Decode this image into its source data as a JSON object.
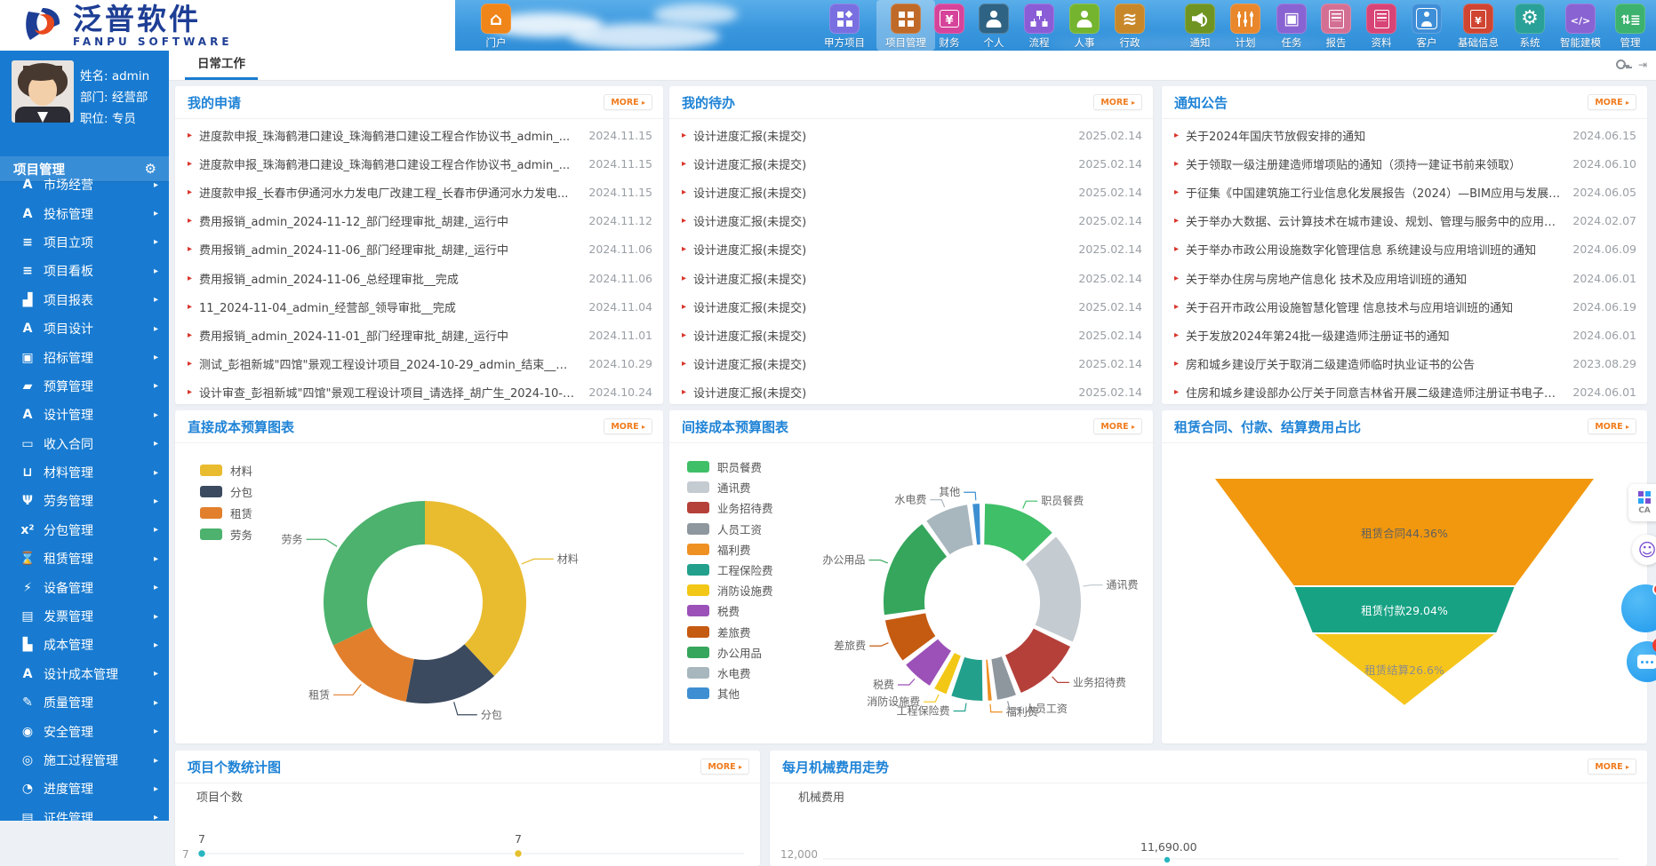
{
  "ui": {
    "more_label": "MORE",
    "accent_blue": "#1f83d6",
    "more_orange": "#f07c1e",
    "sidebar_blue": "#187bd1"
  },
  "header": {
    "logo": {
      "title": "泛普软件",
      "subtitle": "FANPU SOFTWARE"
    },
    "home": {
      "label": "门户",
      "icon": "home-icon",
      "color": "#f08519"
    },
    "nav": [
      {
        "label": "甲方项目",
        "icon": "grid-diamond-icon",
        "color": "#7a6fe0"
      },
      {
        "label": "项目管理",
        "icon": "grid-icon",
        "color": "#bf6a28",
        "active": true
      },
      {
        "label": "财务",
        "icon": "yen-box-icon",
        "color": "#d6439a"
      },
      {
        "label": "个人",
        "icon": "person-icon",
        "color": "#2f6383"
      },
      {
        "label": "流程",
        "icon": "orgchart-icon",
        "color": "#8a5dd6"
      },
      {
        "label": "人事",
        "icon": "person-icon",
        "color": "#74b42e"
      },
      {
        "label": "行政",
        "icon": "layers-icon",
        "color": "#c8882a"
      },
      {
        "label": "通知",
        "icon": "speaker-icon",
        "color": "#6f9422"
      },
      {
        "label": "计划",
        "icon": "sliders-icon",
        "color": "#e8872b"
      },
      {
        "label": "任务",
        "icon": "task-box-icon",
        "color": "#8a63d2"
      },
      {
        "label": "报告",
        "icon": "report-doc-icon",
        "color": "#d46f94"
      },
      {
        "label": "资料",
        "icon": "doc-icon",
        "color": "#d84476"
      },
      {
        "label": "客户",
        "icon": "person-box-icon",
        "color": "#3f8fd8"
      },
      {
        "label": "基础信息",
        "icon": "yen-doc-icon",
        "color": "#cf4532"
      },
      {
        "label": "系统",
        "icon": "gear-icon",
        "color": "#2aa198"
      },
      {
        "label": "智能建模",
        "icon": "code-icon",
        "color": "#8a63d2"
      },
      {
        "label": "管理",
        "icon": "sort-list-icon",
        "color": "#3cb26e"
      }
    ]
  },
  "sidebar": {
    "user": {
      "name": "姓名: admin",
      "dept": "部门: 经营部",
      "title": "职位: 专员"
    },
    "module_title": "项目管理",
    "menu": [
      {
        "label": "市场经营",
        "icon": "a-logo-icon"
      },
      {
        "label": "投标管理",
        "icon": "a-logo-icon"
      },
      {
        "label": "项目立项",
        "icon": "list-icon"
      },
      {
        "label": "项目看板",
        "icon": "list-icon"
      },
      {
        "label": "项目报表",
        "icon": "bar-chart-icon"
      },
      {
        "label": "项目设计",
        "icon": "a-logo-icon"
      },
      {
        "label": "招标管理",
        "icon": "inbox-icon"
      },
      {
        "label": "预算管理",
        "icon": "folder-icon"
      },
      {
        "label": "设计管理",
        "icon": "a-logo-icon"
      },
      {
        "label": "收入合同",
        "icon": "banknote-icon"
      },
      {
        "label": "材料管理",
        "icon": "cart-icon"
      },
      {
        "label": "劳务管理",
        "icon": "labor-icon"
      },
      {
        "label": "分包管理",
        "icon": "x2-icon"
      },
      {
        "label": "租赁管理",
        "icon": "hourglass-icon"
      },
      {
        "label": "设备管理",
        "icon": "plug-icon"
      },
      {
        "label": "发票管理",
        "icon": "doc-icon"
      },
      {
        "label": "成本管理",
        "icon": "chart-icon"
      },
      {
        "label": "设计成本管理",
        "icon": "a-logo-icon"
      },
      {
        "label": "质量管理",
        "icon": "edit-icon"
      },
      {
        "label": "安全管理",
        "icon": "shield-icon"
      },
      {
        "label": "施工过程管理",
        "icon": "process-icon"
      },
      {
        "label": "进度管理",
        "icon": "pie-icon"
      },
      {
        "label": "证件管理",
        "icon": "card-icon"
      }
    ]
  },
  "tabs": [
    {
      "label": "日常工作",
      "active": true
    }
  ],
  "panels": {
    "my_requests": {
      "title": "我的申请",
      "items": [
        {
          "text": "进度款申报_珠海鹤港口建设_珠海鹤港口建设工程合作协议书_admin_...",
          "date": "2024.11.15"
        },
        {
          "text": "进度款申报_珠海鹤港口建设_珠海鹤港口建设工程合作协议书_admin_...",
          "date": "2024.11.15"
        },
        {
          "text": "进度款申报_长春市伊通河水力发电厂改建工程_长春市伊通河水力发电...",
          "date": "2024.11.15"
        },
        {
          "text": "费用报销_admin_2024-11-12_部门经理审批_胡建,_运行中",
          "date": "2024.11.12"
        },
        {
          "text": "费用报销_admin_2024-11-06_部门经理审批_胡建,_运行中",
          "date": "2024.11.06"
        },
        {
          "text": "费用报销_admin_2024-11-06_总经理审批__完成",
          "date": "2024.11.06"
        },
        {
          "text": "11_2024-11-04_admin_经营部_领导审批__完成",
          "date": "2024.11.04"
        },
        {
          "text": "费用报销_admin_2024-11-01_部门经理审批_胡建,_运行中",
          "date": "2024.11.01"
        },
        {
          "text": "测试_彭祖新城\"四馆\"景观工程设计项目_2024-10-29_admin_结束__完成",
          "date": "2024.10.29"
        },
        {
          "text": "设计审查_彭祖新城\"四馆\"景观工程设计项目_请选择_胡广生_2024-10-2...",
          "date": "2024.10.24"
        }
      ]
    },
    "my_todos": {
      "title": "我的待办",
      "items": [
        {
          "text": "设计进度汇报(未提交)",
          "date": "2025.02.14"
        },
        {
          "text": "设计进度汇报(未提交)",
          "date": "2025.02.14"
        },
        {
          "text": "设计进度汇报(未提交)",
          "date": "2025.02.14"
        },
        {
          "text": "设计进度汇报(未提交)",
          "date": "2025.02.14"
        },
        {
          "text": "设计进度汇报(未提交)",
          "date": "2025.02.14"
        },
        {
          "text": "设计进度汇报(未提交)",
          "date": "2025.02.14"
        },
        {
          "text": "设计进度汇报(未提交)",
          "date": "2025.02.14"
        },
        {
          "text": "设计进度汇报(未提交)",
          "date": "2025.02.14"
        },
        {
          "text": "设计进度汇报(未提交)",
          "date": "2025.02.14"
        },
        {
          "text": "设计进度汇报(未提交)",
          "date": "2025.02.14"
        }
      ]
    },
    "notices": {
      "title": "通知公告",
      "items": [
        {
          "text": "关于2024年国庆节放假安排的通知",
          "date": "2024.06.15"
        },
        {
          "text": "关于领取一级注册建造师增项贴的通知（须持一建证书前来领取）",
          "date": "2024.06.10"
        },
        {
          "text": "于征集《中国建筑施工行业信息化发展报告（2024）—BIM应用与发展》材料...",
          "date": "2024.06.05"
        },
        {
          "text": "关于举办大数据、云计算技术在城市建设、规划、管理与服务中的应用培训班...",
          "date": "2024.02.07"
        },
        {
          "text": "关于举办市政公用设施数字化管理信息 系统建设与应用培训班的通知",
          "date": "2024.06.09"
        },
        {
          "text": "关于举办住房与房地产信息化 技术及应用培训班的通知",
          "date": "2024.06.01"
        },
        {
          "text": "关于召开市政公用设施智慧化管理 信息技术与应用培训班的通知",
          "date": "2024.06.19"
        },
        {
          "text": "关于发放2024年第24批一级建造师注册证书的通知",
          "date": "2024.06.01"
        },
        {
          "text": "房和城乡建设厅关于取消二级建造师临时执业证书的公告",
          "date": "2023.08.29"
        },
        {
          "text": "住房和城乡建设部办公厅关于同意吉林省开展二级建造师注册证书电子化试点...",
          "date": "2024.06.01"
        }
      ]
    }
  },
  "chart_data": [
    {
      "type": "pie",
      "title": "直接成本预算图表",
      "note_units": "percent estimated from arc angles",
      "legend_position": "left",
      "series": [
        {
          "name": "材料",
          "value": 38,
          "color": "#e9bb2f"
        },
        {
          "name": "分包",
          "value": 15,
          "color": "#3b4a5e"
        },
        {
          "name": "租赁",
          "value": 15,
          "color": "#e27f2d"
        },
        {
          "name": "劳务",
          "value": 32,
          "color": "#4cb26d"
        }
      ],
      "legend_order": [
        "材料",
        "分包",
        "租赁",
        "劳务"
      ]
    },
    {
      "type": "pie",
      "title": "间接成本预算图表",
      "note_units": "percent estimated from arc angles",
      "legend_position": "left",
      "series": [
        {
          "name": "职员餐费",
          "value": 13,
          "color": "#3fbf67"
        },
        {
          "name": "通讯费",
          "value": 19,
          "color": "#c4cbd1"
        },
        {
          "name": "业务招待费",
          "value": 12,
          "color": "#b5403a"
        },
        {
          "name": "人员工资",
          "value": 4,
          "color": "#8e979e"
        },
        {
          "name": "福利费",
          "value": 1.5,
          "color": "#ef9022"
        },
        {
          "name": "工程保险费",
          "value": 6,
          "color": "#22a08c"
        },
        {
          "name": "消防设施费",
          "value": 3,
          "color": "#f3c716"
        },
        {
          "name": "税费",
          "value": 6,
          "color": "#9b51b8"
        },
        {
          "name": "差旅费",
          "value": 8,
          "color": "#c55a11"
        },
        {
          "name": "办公用品",
          "value": 17.5,
          "color": "#35a65c"
        },
        {
          "name": "水电费",
          "value": 8,
          "color": "#a8b6bd"
        },
        {
          "name": "其他",
          "value": 2,
          "color": "#3d8fd1"
        }
      ],
      "legend_order": [
        "职员餐费",
        "通讯费",
        "业务招待费",
        "人员工资",
        "福利费",
        "工程保险费",
        "消防设施费",
        "税费",
        "差旅费",
        "办公用品",
        "水电费",
        "其他"
      ]
    },
    {
      "type": "funnel",
      "title": "租赁合同、付款、结算费用占比",
      "series": [
        {
          "name": "租赁合同",
          "value": 44.36,
          "color": "#f2980e",
          "label_color": "#5f5f5f"
        },
        {
          "name": "租赁付款",
          "value": 29.04,
          "color": "#17a284",
          "label_color": "#ffffff"
        },
        {
          "name": "租赁结算",
          "value": 26.6,
          "color": "#f6c51b",
          "label_color": "#8c8c8c"
        }
      ]
    },
    {
      "type": "line",
      "title": "项目个数统计图",
      "ylabel": "项目个数",
      "ytick": "7",
      "visible_points": [
        {
          "label": "7",
          "color": "#2ab6c0"
        },
        {
          "label": "7",
          "color": "#e5c02e"
        }
      ]
    },
    {
      "type": "line",
      "title": "每月机械费用走势",
      "ylabel": "机械费用",
      "ytick": "12,000",
      "data_label": "11,690.00"
    }
  ],
  "widgets": {
    "qr_card_text": "CA",
    "chat_badge": "45"
  }
}
